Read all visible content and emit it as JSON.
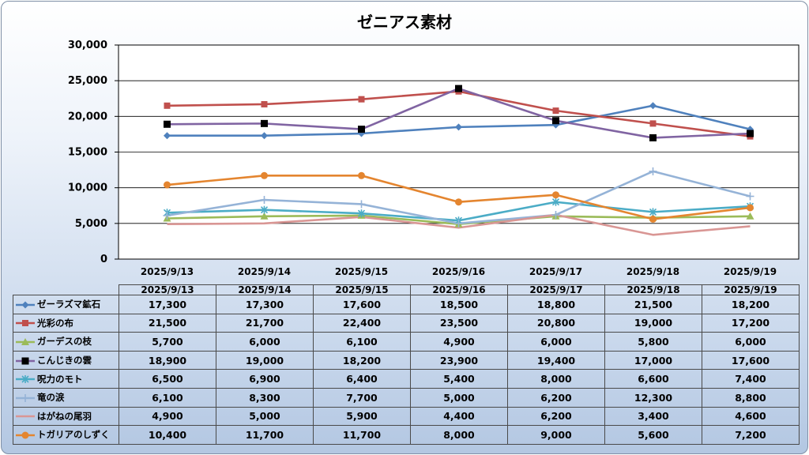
{
  "chart_data": {
    "type": "line",
    "title": "ゼニアス素材",
    "xlabel": "",
    "ylabel": "",
    "categories": [
      "2025/9/13",
      "2025/9/14",
      "2025/9/15",
      "2025/9/16",
      "2025/9/17",
      "2025/9/18",
      "2025/9/19"
    ],
    "ylim": [
      0,
      30000
    ],
    "yticks": [
      0,
      5000,
      10000,
      15000,
      20000,
      25000,
      30000
    ],
    "ytick_labels": [
      "0",
      "5,000",
      "10,000",
      "15,000",
      "20,000",
      "25,000",
      "30,000"
    ],
    "grid": true,
    "legend": "data-table",
    "series": [
      {
        "name": "ゼーラズマ鉱石",
        "color": "#4f81bd",
        "marker": "diamond",
        "values": [
          17300,
          17300,
          17600,
          18500,
          18800,
          21500,
          18200
        ],
        "labels": [
          "17,300",
          "17,300",
          "17,600",
          "18,500",
          "18,800",
          "21,500",
          "18,200"
        ]
      },
      {
        "name": "光彩の布",
        "color": "#c0504d",
        "marker": "square",
        "values": [
          21500,
          21700,
          22400,
          23500,
          20800,
          19000,
          17200
        ],
        "labels": [
          "21,500",
          "21,700",
          "22,400",
          "23,500",
          "20,800",
          "19,000",
          "17,200"
        ]
      },
      {
        "name": "ガーデスの枝",
        "color": "#9bbb59",
        "marker": "triangle",
        "values": [
          5700,
          6000,
          6100,
          4900,
          6000,
          5800,
          6000
        ],
        "labels": [
          "5,700",
          "6,000",
          "6,100",
          "4,900",
          "6,000",
          "5,800",
          "6,000"
        ]
      },
      {
        "name": "こんじきの雲",
        "color": "#8064a2",
        "marker": "blacksquare",
        "values": [
          18900,
          19000,
          18200,
          23900,
          19400,
          17000,
          17600
        ],
        "labels": [
          "18,900",
          "19,000",
          "18,200",
          "23,900",
          "19,400",
          "17,000",
          "17,600"
        ]
      },
      {
        "name": "呪力のモト",
        "color": "#4bacc6",
        "marker": "star",
        "values": [
          6500,
          6900,
          6400,
          5400,
          8000,
          6600,
          7400
        ],
        "labels": [
          "6,500",
          "6,900",
          "6,400",
          "5,400",
          "8,000",
          "6,600",
          "7,400"
        ]
      },
      {
        "name": "竜の涙",
        "color": "#95b3d7",
        "marker": "plus",
        "values": [
          6100,
          8300,
          7700,
          5000,
          6200,
          12300,
          8800
        ],
        "labels": [
          "6,100",
          "8,300",
          "7,700",
          "5,000",
          "6,200",
          "12,300",
          "8,800"
        ]
      },
      {
        "name": "はがねの尾羽",
        "color": "#d99694",
        "marker": "none",
        "values": [
          4900,
          5000,
          5900,
          4400,
          6200,
          3400,
          4600
        ],
        "labels": [
          "4,900",
          "5,000",
          "5,900",
          "4,400",
          "6,200",
          "3,400",
          "4,600"
        ]
      },
      {
        "name": "トガリアのしずく",
        "color": "#e4852f",
        "marker": "circle",
        "values": [
          10400,
          11700,
          11700,
          8000,
          9000,
          5600,
          7200
        ],
        "labels": [
          "10,400",
          "11,700",
          "11,700",
          "8,000",
          "9,000",
          "5,600",
          "7,200"
        ]
      }
    ]
  }
}
